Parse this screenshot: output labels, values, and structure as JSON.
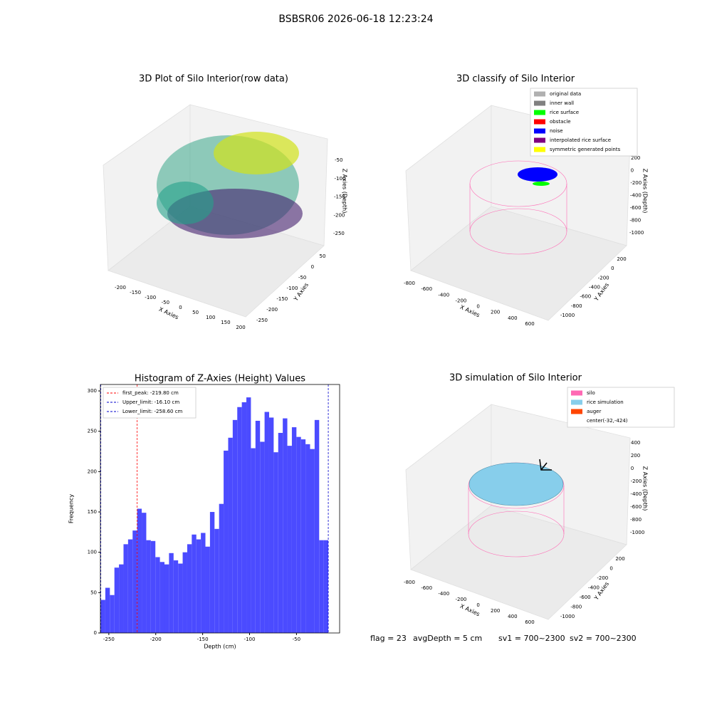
{
  "suptitle": "BSBSR06 2026-06-18 12:23:24",
  "footer": [
    "flag = 23",
    "avgDepth = 5 cm",
    "sv1 = 700~2300",
    "sv2 = 700~2300"
  ],
  "chart_data": [
    {
      "type": "scatter3d",
      "title": "3D Plot of Silo Interior(row data)",
      "xlabel": "X Axies",
      "ylabel": "Y Axies",
      "zlabel": "Z Axies (Depth)",
      "xticks": [
        -200,
        -150,
        -100,
        -50,
        0,
        50,
        100,
        150,
        200
      ],
      "yticks": [
        -250,
        -200,
        -150,
        -100,
        -50,
        0,
        50
      ],
      "zticks": [
        -50,
        -100,
        -150,
        -200,
        -250
      ]
    },
    {
      "type": "scatter3d",
      "title": "3D classify of Silo Interior",
      "xlabel": "X Axies",
      "ylabel": "Y Axies",
      "zlabel": "Z Axies (Depth)",
      "xticks": [
        -800,
        -600,
        -400,
        -200,
        0,
        200,
        400,
        600
      ],
      "yticks": [
        -1000,
        -800,
        -600,
        -400,
        -200,
        0,
        200
      ],
      "zticks": [
        200,
        0,
        -200,
        -400,
        -600,
        -800,
        -1000
      ],
      "legend": [
        {
          "name": "original data",
          "color": "#b0b0b0"
        },
        {
          "name": "inner wall",
          "color": "#808080"
        },
        {
          "name": "rice surface",
          "color": "#00ff00"
        },
        {
          "name": "obstacle",
          "color": "#ff0000"
        },
        {
          "name": "noise",
          "color": "#0000ff"
        },
        {
          "name": "interpolated rice surface",
          "color": "#800080"
        },
        {
          "name": "symmetric generated points",
          "color": "#ffff00"
        }
      ]
    },
    {
      "type": "histogram",
      "title": "Histogram of Z-Axies (Height) Values",
      "xlabel": "Depth (cm)",
      "ylabel": "Frequency",
      "color": "#4b4bff",
      "bins": [
        -258.6,
        -253.75,
        -248.9,
        -244.05,
        -239.2,
        -234.35,
        -229.5,
        -224.65,
        -219.8,
        -214.95,
        -210.1,
        -205.25,
        -200.4,
        -195.55,
        -190.7,
        -185.85,
        -181.0,
        -176.15,
        -171.3,
        -166.45,
        -161.6,
        -156.75,
        -151.9,
        -147.05,
        -142.2,
        -137.35,
        -132.5,
        -127.65,
        -122.8,
        -117.95,
        -113.1,
        -108.25,
        -103.4,
        -98.55,
        -93.7,
        -88.85,
        -84.0,
        -79.15,
        -74.3,
        -69.45,
        -64.6,
        -59.75,
        -54.9,
        -50.05,
        -45.2,
        -40.35,
        -35.5,
        -30.65,
        -25.8,
        -20.95,
        -16.1
      ],
      "values": [
        41,
        56,
        47,
        81,
        85,
        110,
        116,
        127,
        154,
        149,
        115,
        114,
        94,
        88,
        85,
        99,
        90,
        86,
        100,
        110,
        122,
        116,
        124,
        107,
        150,
        129,
        160,
        226,
        242,
        264,
        280,
        286,
        292,
        229,
        263,
        237,
        274,
        267,
        224,
        248,
        266,
        232,
        255,
        243,
        240,
        234,
        228,
        264,
        115,
        115
      ],
      "lines": [
        {
          "name": "first_peak: -219.80 cm",
          "value": -219.8,
          "color": "#ff0000"
        },
        {
          "name": "Upper_limit: -16.10 cm",
          "value": -16.1,
          "color": "#0000cc"
        },
        {
          "name": "Lower_limit: -258.60 cm",
          "value": -258.6,
          "color": "#0000cc"
        }
      ],
      "xlim": [
        -259,
        -4
      ],
      "ylim": [
        0,
        308
      ],
      "xticks": [
        -250,
        -200,
        -150,
        -100,
        -50
      ],
      "yticks": [
        0,
        50,
        100,
        150,
        200,
        250,
        300
      ],
      "legend": "upper left"
    },
    {
      "type": "scatter3d",
      "title": "3D simulation of Silo Interior",
      "xlabel": "X Axies",
      "ylabel": "Y Axies",
      "zlabel": "Z Axies (Depth)",
      "xticks": [
        -800,
        -600,
        -400,
        -200,
        0,
        200,
        400,
        600
      ],
      "yticks": [
        -1000,
        -800,
        -600,
        -400,
        -200,
        0,
        200
      ],
      "zticks": [
        400,
        200,
        0,
        -200,
        -400,
        -600,
        -800,
        -1000
      ],
      "legend": [
        {
          "name": "silo",
          "color": "#ff69b4"
        },
        {
          "name": "rice simulation",
          "color": "#87ceeb"
        },
        {
          "name": "auger",
          "color": "#ff4500"
        },
        {
          "name": "center(-32,-424)",
          "color": null
        }
      ]
    }
  ]
}
